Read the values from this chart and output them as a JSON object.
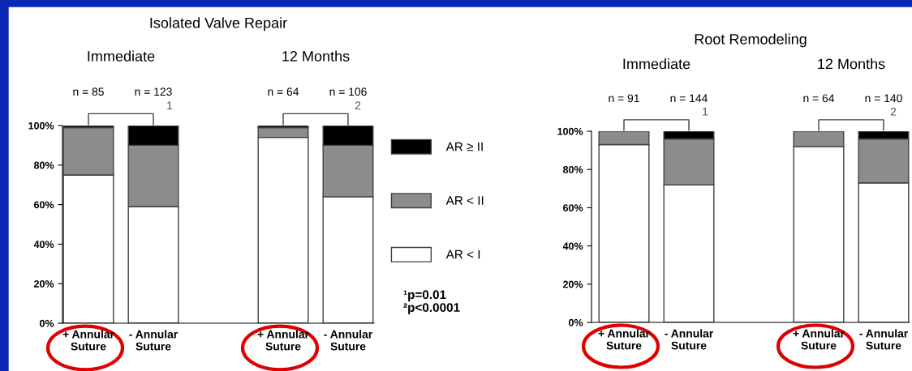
{
  "chart_data": [
    {
      "type": "bar",
      "stacked": true,
      "title": "Isolated Valve Repair",
      "categories": [
        "+ Annular\nSuture",
        "- Annular\nSuture",
        null,
        "+ Annular\nSuture",
        "- Annular\nSuture"
      ],
      "series": [
        {
          "name": "AR < I",
          "color": "#ffffff",
          "values": [
            75,
            59,
            null,
            94,
            64
          ]
        },
        {
          "name": "AR < II",
          "color": "#8c8c8c",
          "values": [
            24,
            31,
            null,
            5,
            26
          ]
        },
        {
          "name": "AR ≥ II",
          "color": "#000000",
          "values": [
            1,
            10,
            null,
            1,
            10
          ]
        }
      ],
      "ylim": [
        0,
        100
      ],
      "yticks": [
        {
          "value": 0,
          "label": "0%"
        },
        {
          "value": 20,
          "label": "20%"
        },
        {
          "value": 40,
          "label": "40%"
        },
        {
          "value": 60,
          "label": "60%"
        },
        {
          "value": 80,
          "label": "80%"
        },
        {
          "value": 100,
          "label": "100%"
        }
      ],
      "legend": "right",
      "grid": false,
      "annotations": [
        "Immediate",
        "12 Months",
        "n = 85",
        "n = 123",
        "n = 64",
        "n = 106",
        "1",
        "2",
        "¹p=0.01",
        "²p<0.0001"
      ]
    },
    {
      "type": "bar",
      "stacked": true,
      "title": "Root Remodeling",
      "categories": [
        "+ Annular\nSuture",
        "- Annular\nSuture",
        null,
        "+ Annular\nSuture",
        "- Annular\nSuture"
      ],
      "series": [
        {
          "color": "#ffffff",
          "values": [
            93,
            72,
            null,
            92,
            73
          ]
        },
        {
          "color": "#8c8c8c",
          "values": [
            7,
            24,
            null,
            8,
            23
          ]
        },
        {
          "color": "#000000",
          "values": [
            0,
            4,
            null,
            0,
            4
          ]
        }
      ],
      "ylim": [
        0,
        100
      ],
      "yticks": [
        {
          "value": 0,
          "label": "0%"
        },
        {
          "value": 20,
          "label": "20%"
        },
        {
          "value": 40,
          "label": "40%"
        },
        {
          "value": 60,
          "label": "60%"
        },
        {
          "value": 80,
          "label": "80%"
        },
        {
          "value": 100,
          "label": "100%"
        }
      ],
      "legend": false,
      "grid": false,
      "annotations": [
        "Immediate",
        "12 Months",
        "n = 91",
        "n = 144",
        "n = 64",
        "n = 140",
        "1",
        "2"
      ]
    }
  ]
}
